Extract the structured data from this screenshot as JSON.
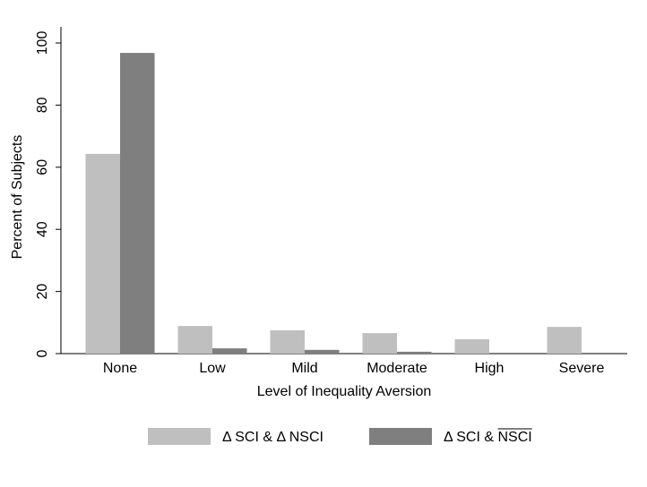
{
  "chart_data": {
    "type": "bar",
    "xlabel": "Level of Inequality Aversion",
    "ylabel": "Percent of Subjects",
    "categories": [
      "None",
      "Low",
      "Mild",
      "Moderate",
      "High",
      "Severe"
    ],
    "series": [
      {
        "name": "Δ SCI & Δ NSCI",
        "color": "#bfbfbf",
        "values": [
          64.3,
          8.9,
          7.5,
          6.6,
          4.6,
          8.6
        ]
      },
      {
        "name": "Δ SCI & NSCI",
        "color": "#7f7f7f",
        "values": [
          96.8,
          1.7,
          1.2,
          0.6,
          0,
          0.3
        ]
      }
    ],
    "ylim": [
      0,
      100
    ],
    "yticks": [
      0,
      20,
      40,
      60,
      80,
      100
    ],
    "grid": false,
    "legend": "bottom"
  }
}
